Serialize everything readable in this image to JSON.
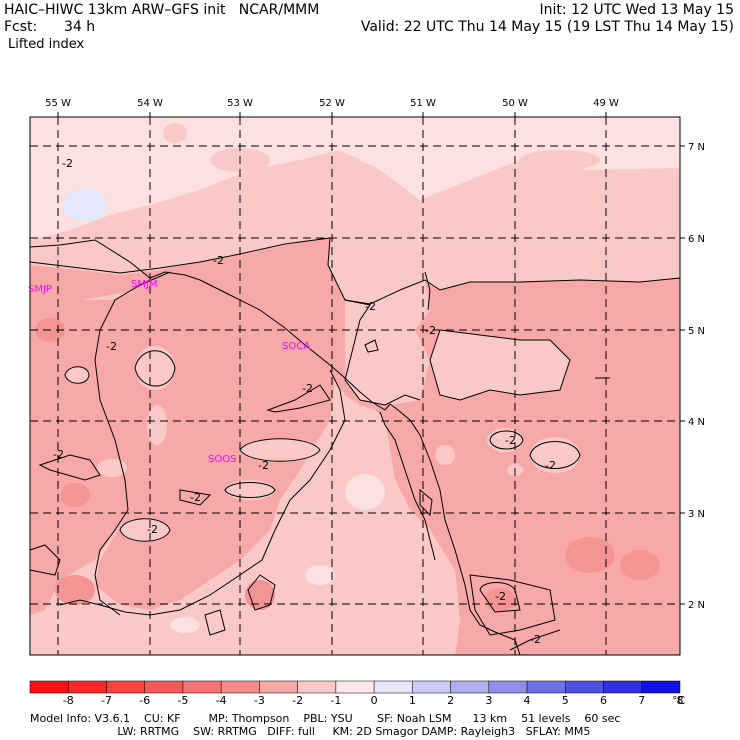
{
  "header": {
    "model_line": "HAIC–HIWC 13km ARW–GFS init   NCAR/MMM",
    "fcst_label": "Fcst:",
    "fcst_value": "34 h",
    "init": "Init: 12 UTC Wed 13 May 15",
    "valid": "Valid: 22 UTC Thu 14 May 15 (19 LST Thu 14 May 15)",
    "field": "Lifted index"
  },
  "map": {
    "lon_labels": [
      "55 W",
      "54 W",
      "53 W",
      "52 W",
      "51 W",
      "50 W",
      "49 W"
    ],
    "lat_labels": [
      "7 N",
      "6 N",
      "5 N",
      "4 N",
      "3 N",
      "2 N"
    ],
    "stations": [
      "SMJP",
      "SMJM",
      "SOCA",
      "SOOS"
    ],
    "contour_labels": [
      "-2",
      "-2",
      "-2",
      "-2",
      "-2",
      "-2",
      "-2",
      "-2",
      "-2",
      "-2",
      "-2",
      "-2",
      "-2",
      "-2"
    ],
    "colors": {
      "land_pink": "#f8a8a8",
      "light_pink": "#fbc8c8",
      "pale_pink": "#fde0e0",
      "deep_pink": "#f49494",
      "pale_blue": "#e4e8fa"
    }
  },
  "colorbar": {
    "labels": [
      "-8",
      "-7",
      "-6",
      "-5",
      "-4",
      "-3",
      "-2",
      "-1",
      "0",
      "1",
      "2",
      "3",
      "4",
      "5",
      "6",
      "7",
      "8"
    ],
    "unit": "°C",
    "colors": [
      "#ff1010",
      "#ff2828",
      "#fa4040",
      "#f55a5a",
      "#f57373",
      "#f58c8c",
      "#f8a8a8",
      "#fbc8c8",
      "#fde8e8",
      "#e8e8fa",
      "#ccccf5",
      "#aeaef0",
      "#9090eb",
      "#7070e6",
      "#5050e0",
      "#3030e0",
      "#1010e8"
    ]
  },
  "footer": {
    "line1": "Model Info: V3.6.1    CU: KF        MP: Thompson    PBL: YSU       SF: Noah LSM      13 km    51 levels    60 sec",
    "line2": "                         LW: RRTMG    SW: RRTMG   DIFF: full     KM: 2D Smagor DAMP: Rayleigh3   SFLAY: MM5"
  }
}
